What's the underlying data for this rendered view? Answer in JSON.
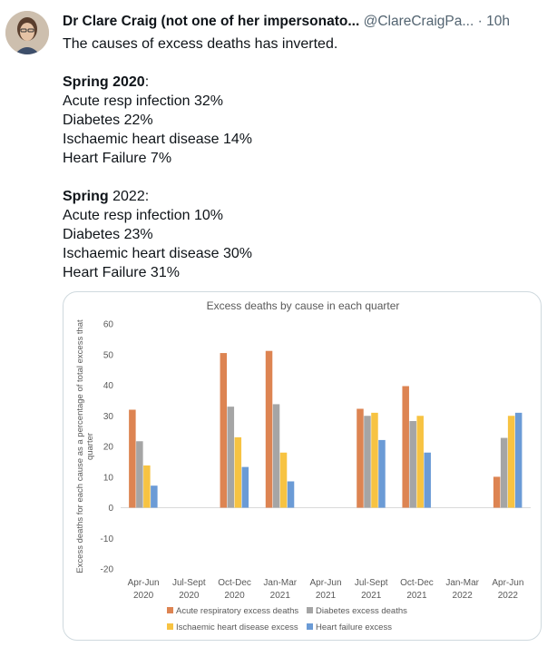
{
  "tweet": {
    "author_name": "Dr Clare Craig (not one of her impersonato...",
    "author_handle": "@ClareCraigPa...",
    "separator": "·",
    "time": "10h",
    "lines": {
      "intro": "The causes of excess deaths has inverted.",
      "s2020_heading_bold": "Spring 2020",
      "s2020_heading_colon": ":",
      "s2020_l1": "Acute resp infection 32%",
      "s2020_l2": "Diabetes 22%",
      "s2020_l3": "Ischaemic heart disease 14%",
      "s2020_l4": "Heart Failure 7%",
      "s2022_heading_bold": "Spring",
      "s2022_heading_rest": " 2022:",
      "s2022_l1": "Acute resp infection 10%",
      "s2022_l2": "Diabetes 23%",
      "s2022_l3": "Ischaemic heart disease 30%",
      "s2022_l4": "Heart Failure 31%"
    }
  },
  "colors": {
    "acute": "#dd8452",
    "diabetes": "#a5a5a5",
    "ischaemic": "#f7c342",
    "heart_failure": "#6b9bd6"
  },
  "chart_data": {
    "type": "bar",
    "title": "Excess deaths by cause in each quarter",
    "ylabel_line1": "Excess deaths for each cause as a percentage of total excess that",
    "ylabel_line2": "quarter",
    "xlabel": "",
    "ylim": [
      -20,
      60
    ],
    "yticks": [
      60,
      50,
      40,
      30,
      20,
      10,
      0,
      -10,
      -20
    ],
    "categories": [
      [
        "Apr-Jun",
        "2020"
      ],
      [
        "Jul-Sept",
        "2020"
      ],
      [
        "Oct-Dec",
        "2020"
      ],
      [
        "Jan-Mar",
        "2021"
      ],
      [
        "Apr-Jun",
        "2021"
      ],
      [
        "Jul-Sept",
        "2021"
      ],
      [
        "Oct-Dec",
        "2021"
      ],
      [
        "Jan-Mar",
        "2022"
      ],
      [
        "Apr-Jun",
        "2022"
      ]
    ],
    "series": [
      {
        "name": "Acute respiratory excess deaths",
        "color_key": "acute",
        "values": [
          32,
          null,
          50.5,
          51.2,
          null,
          32.3,
          39.7,
          null,
          10.1
        ]
      },
      {
        "name": "Diabetes excess deaths",
        "color_key": "diabetes",
        "values": [
          21.7,
          null,
          33,
          33.8,
          null,
          30,
          28.3,
          null,
          22.8
        ]
      },
      {
        "name": "Ischaemic heart disease excess",
        "color_key": "ischaemic",
        "values": [
          13.8,
          null,
          23,
          18,
          null,
          31,
          30,
          null,
          30
        ]
      },
      {
        "name": "Heart failure excess",
        "color_key": "heart_failure",
        "values": [
          7.2,
          null,
          13.3,
          8.6,
          null,
          22.1,
          18,
          null,
          31
        ]
      }
    ],
    "grid": false,
    "legend_placement": "bottom"
  }
}
